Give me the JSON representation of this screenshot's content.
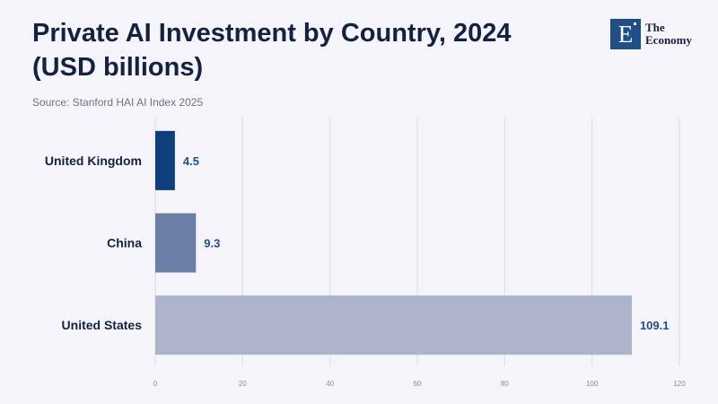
{
  "header": {
    "title_line1": "Private AI Investment by Country, 2024",
    "title_line2": "(USD billions)",
    "source": "Source: Stanford HAI AI Index 2025"
  },
  "logo": {
    "letter": "E",
    "line1": "The",
    "line2": "Economy",
    "color": "#1f4f86"
  },
  "chart_data": {
    "type": "bar",
    "orientation": "horizontal",
    "title": "Private AI Investment by Country, 2024 (USD billions)",
    "categories": [
      "United Kingdom",
      "China",
      "United States"
    ],
    "values": [
      4.5,
      9.3,
      109.1
    ],
    "value_labels": [
      "4.5",
      "9.3",
      "109.1"
    ],
    "colors": [
      "#0f3f7a",
      "#6b7ea6",
      "#adb3c8"
    ],
    "xlim": [
      0,
      120
    ],
    "x_ticks": [
      0,
      20,
      40,
      60,
      80,
      100,
      120
    ],
    "grid": true
  }
}
